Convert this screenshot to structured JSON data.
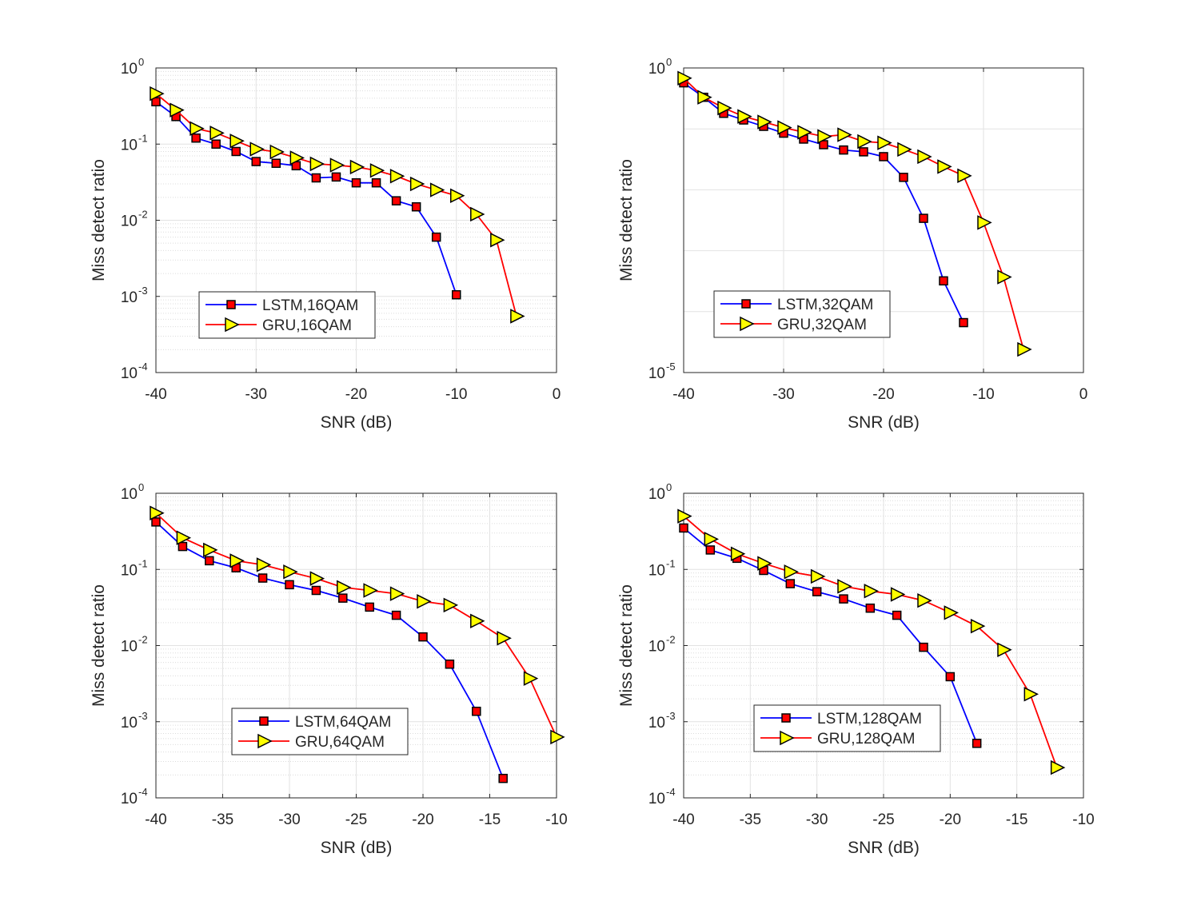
{
  "chart_data": [
    {
      "type": "line",
      "xlabel": "SNR (dB)",
      "ylabel": "Miss detect ratio",
      "yscale": "log",
      "xlim": [
        -40,
        0
      ],
      "ylim": [
        0.0001,
        1
      ],
      "xticks": [
        "-40",
        "-30",
        "-20",
        "-10",
        "0"
      ],
      "yticks": [
        {
          "base": "10",
          "exp": "-4"
        },
        {
          "base": "10",
          "exp": "-3"
        },
        {
          "base": "10",
          "exp": "-2"
        },
        {
          "base": "10",
          "exp": "-1"
        },
        {
          "base": "10",
          "exp": "0"
        }
      ],
      "grid": true,
      "legend_position": "bottom-left",
      "series": [
        {
          "name": "LSTM,16QAM",
          "x": [
            -40,
            -38,
            -36,
            -34,
            -32,
            -30,
            -28,
            -26,
            -24,
            -22,
            -20,
            -18,
            -16,
            -14,
            -12,
            -10
          ],
          "values": [
            0.36,
            0.23,
            0.12,
            0.1,
            0.08,
            0.059,
            0.056,
            0.052,
            0.036,
            0.037,
            0.031,
            0.031,
            0.018,
            0.015,
            0.006,
            0.00105
          ]
        },
        {
          "name": "GRU,16QAM",
          "x": [
            -40,
            -38,
            -36,
            -34,
            -32,
            -30,
            -28,
            -26,
            -24,
            -22,
            -20,
            -18,
            -16,
            -14,
            -12,
            -10,
            -8,
            -6,
            -4
          ],
          "values": [
            0.46,
            0.28,
            0.16,
            0.14,
            0.11,
            0.086,
            0.079,
            0.066,
            0.055,
            0.053,
            0.05,
            0.045,
            0.038,
            0.03,
            0.025,
            0.021,
            0.012,
            0.0055,
            0.00055
          ]
        }
      ]
    },
    {
      "type": "line",
      "xlabel": "SNR (dB)",
      "ylabel": "Miss detect ratio",
      "yscale": "log",
      "xlim": [
        -40,
        0
      ],
      "ylim": [
        1e-05,
        1
      ],
      "xticks": [
        "-40",
        "-30",
        "-20",
        "-10",
        "0"
      ],
      "yticks": [
        {
          "base": "10",
          "exp": "-5"
        },
        {
          "base": "10",
          "exp": "0"
        }
      ],
      "grid": true,
      "legend_position": "bottom-left",
      "series": [
        {
          "name": "LSTM,32QAM",
          "x": [
            -40,
            -38,
            -36,
            -34,
            -32,
            -30,
            -28,
            -26,
            -24,
            -22,
            -20,
            -18,
            -16,
            -14,
            -12
          ],
          "values": [
            0.57,
            0.33,
            0.18,
            0.14,
            0.11,
            0.085,
            0.068,
            0.055,
            0.045,
            0.042,
            0.035,
            0.016,
            0.0034,
            0.00032,
            6.6e-05
          ]
        },
        {
          "name": "GRU,32QAM",
          "x": [
            -40,
            -38,
            -36,
            -34,
            -32,
            -30,
            -28,
            -26,
            -24,
            -22,
            -20,
            -18,
            -16,
            -14,
            -12,
            -10,
            -8,
            -6
          ],
          "values": [
            0.68,
            0.33,
            0.22,
            0.16,
            0.13,
            0.105,
            0.088,
            0.075,
            0.08,
            0.062,
            0.059,
            0.046,
            0.035,
            0.024,
            0.017,
            0.0029,
            0.00037,
            2.4e-05
          ]
        }
      ]
    },
    {
      "type": "line",
      "xlabel": "SNR (dB)",
      "ylabel": "Miss detect ratio",
      "yscale": "log",
      "xlim": [
        -40,
        -10
      ],
      "ylim": [
        0.0001,
        1
      ],
      "xticks": [
        "-40",
        "-35",
        "-30",
        "-25",
        "-20",
        "-15",
        "-10"
      ],
      "yticks": [
        {
          "base": "10",
          "exp": "-4"
        },
        {
          "base": "10",
          "exp": "-3"
        },
        {
          "base": "10",
          "exp": "-2"
        },
        {
          "base": "10",
          "exp": "-1"
        },
        {
          "base": "10",
          "exp": "0"
        }
      ],
      "grid": true,
      "legend_position": "bottom-center",
      "series": [
        {
          "name": "LSTM,64QAM",
          "x": [
            -40,
            -38,
            -36,
            -34,
            -32,
            -30,
            -28,
            -26,
            -24,
            -22,
            -20,
            -18,
            -16,
            -14
          ],
          "values": [
            0.42,
            0.2,
            0.13,
            0.105,
            0.077,
            0.063,
            0.053,
            0.042,
            0.032,
            0.025,
            0.013,
            0.0057,
            0.00137,
            0.00018
          ]
        },
        {
          "name": "GRU,64QAM",
          "x": [
            -40,
            -38,
            -36,
            -34,
            -32,
            -30,
            -28,
            -26,
            -24,
            -22,
            -20,
            -18,
            -16,
            -14,
            -12,
            -10
          ],
          "values": [
            0.55,
            0.26,
            0.18,
            0.13,
            0.115,
            0.093,
            0.076,
            0.058,
            0.053,
            0.048,
            0.038,
            0.034,
            0.021,
            0.0125,
            0.0037,
            0.00063
          ]
        }
      ]
    },
    {
      "type": "line",
      "xlabel": "SNR (dB)",
      "ylabel": "Miss detect ratio",
      "yscale": "log",
      "xlim": [
        -40,
        -10
      ],
      "ylim": [
        0.0001,
        1
      ],
      "xticks": [
        "-40",
        "-35",
        "-30",
        "-25",
        "-20",
        "-15",
        "-10"
      ],
      "yticks": [
        {
          "base": "10",
          "exp": "-4"
        },
        {
          "base": "10",
          "exp": "-3"
        },
        {
          "base": "10",
          "exp": "-2"
        },
        {
          "base": "10",
          "exp": "-1"
        },
        {
          "base": "10",
          "exp": "0"
        }
      ],
      "grid": true,
      "legend_position": "bottom-center",
      "series": [
        {
          "name": "LSTM,128QAM",
          "x": [
            -40,
            -38,
            -36,
            -34,
            -32,
            -30,
            -28,
            -26,
            -24,
            -22,
            -20,
            -18
          ],
          "values": [
            0.35,
            0.18,
            0.14,
            0.097,
            0.065,
            0.051,
            0.041,
            0.031,
            0.025,
            0.0095,
            0.0039,
            0.00052
          ]
        },
        {
          "name": "GRU,128QAM",
          "x": [
            -40,
            -38,
            -36,
            -34,
            -32,
            -30,
            -28,
            -26,
            -24,
            -22,
            -20,
            -18,
            -16,
            -14,
            -12
          ],
          "values": [
            0.5,
            0.25,
            0.16,
            0.12,
            0.093,
            0.081,
            0.06,
            0.052,
            0.047,
            0.039,
            0.027,
            0.018,
            0.0088,
            0.0023,
            0.00025
          ]
        }
      ]
    }
  ],
  "style": {
    "lstm_line_color": "#0000ff",
    "lstm_marker_fill": "#ff0000",
    "gru_line_color": "#ff0000",
    "gru_marker_fill": "#ffff00",
    "lstm_marker": "square",
    "gru_marker": "triangle-right"
  }
}
